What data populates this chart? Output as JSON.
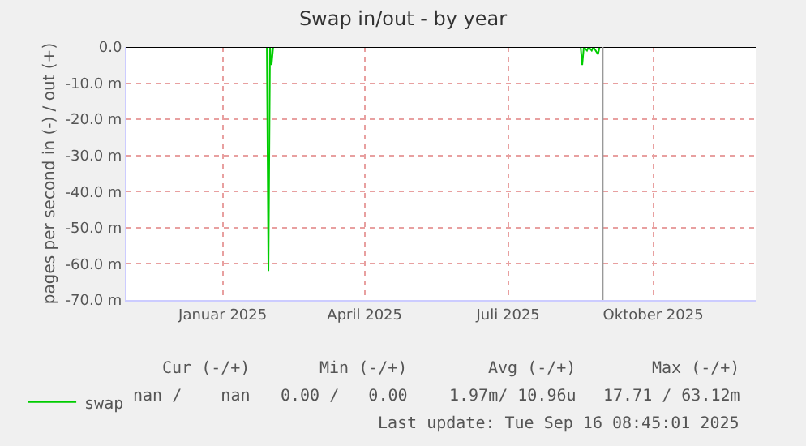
{
  "chart_data": {
    "type": "line",
    "title": "Swap in/out - by year",
    "ylabel": "pages per second in (-) / out (+)",
    "series": [
      {
        "name": "swap",
        "color": "#00cc00",
        "x": [
          "2025-01-25",
          "2025-01-29",
          "2025-01-30",
          "2025-01-31",
          "2025-02-01",
          "2025-02-02",
          "2025-08-15",
          "2025-08-16",
          "2025-08-17",
          "2025-08-18",
          "2025-08-20",
          "2025-08-21",
          "2025-08-23",
          "2025-08-24",
          "2025-08-27",
          "2025-08-28"
        ],
        "values": [
          0,
          0,
          -62,
          0,
          -5,
          0,
          0,
          0,
          -5,
          0,
          -1,
          0,
          -1,
          0,
          -2,
          0
        ]
      }
    ],
    "xlim": [
      "2024-11-01",
      "2025-12-05"
    ],
    "xticks": [
      {
        "value": "2025-01-01",
        "label": "Januar 2025"
      },
      {
        "value": "2025-04-01",
        "label": "April 2025"
      },
      {
        "value": "2025-07-01",
        "label": "Juli 2025"
      },
      {
        "value": "2025-10-01",
        "label": "Oktober 2025"
      }
    ],
    "ylim": [
      -70,
      0
    ],
    "yticks": [
      {
        "value": 0,
        "label": "0.0"
      },
      {
        "value": -10,
        "label": "-10.0 m"
      },
      {
        "value": -20,
        "label": "-20.0 m"
      },
      {
        "value": -30,
        "label": "-30.0 m"
      },
      {
        "value": -40,
        "label": "-40.0 m"
      },
      {
        "value": -50,
        "label": "-50.0 m"
      },
      {
        "value": -60,
        "label": "-60.0 m"
      },
      {
        "value": -70,
        "label": "-70.0 m"
      }
    ],
    "ref_lines": [
      {
        "axis": "y",
        "value": 0,
        "color": "#000000"
      },
      {
        "axis": "x",
        "value": "2025-08-30",
        "color": "#999999"
      }
    ],
    "grid": true,
    "legend": "bottom left",
    "annotations": [
      "Cur (-/+)",
      "Min (-/+)",
      "Avg (-/+)",
      "Max (-/+)",
      "nan /    nan",
      "0.00 /   0.00",
      "1.97m/ 10.96u",
      "17.71 / 63.12m",
      "Last update: Tue Sep 16 08:45:01 2025"
    ]
  }
}
